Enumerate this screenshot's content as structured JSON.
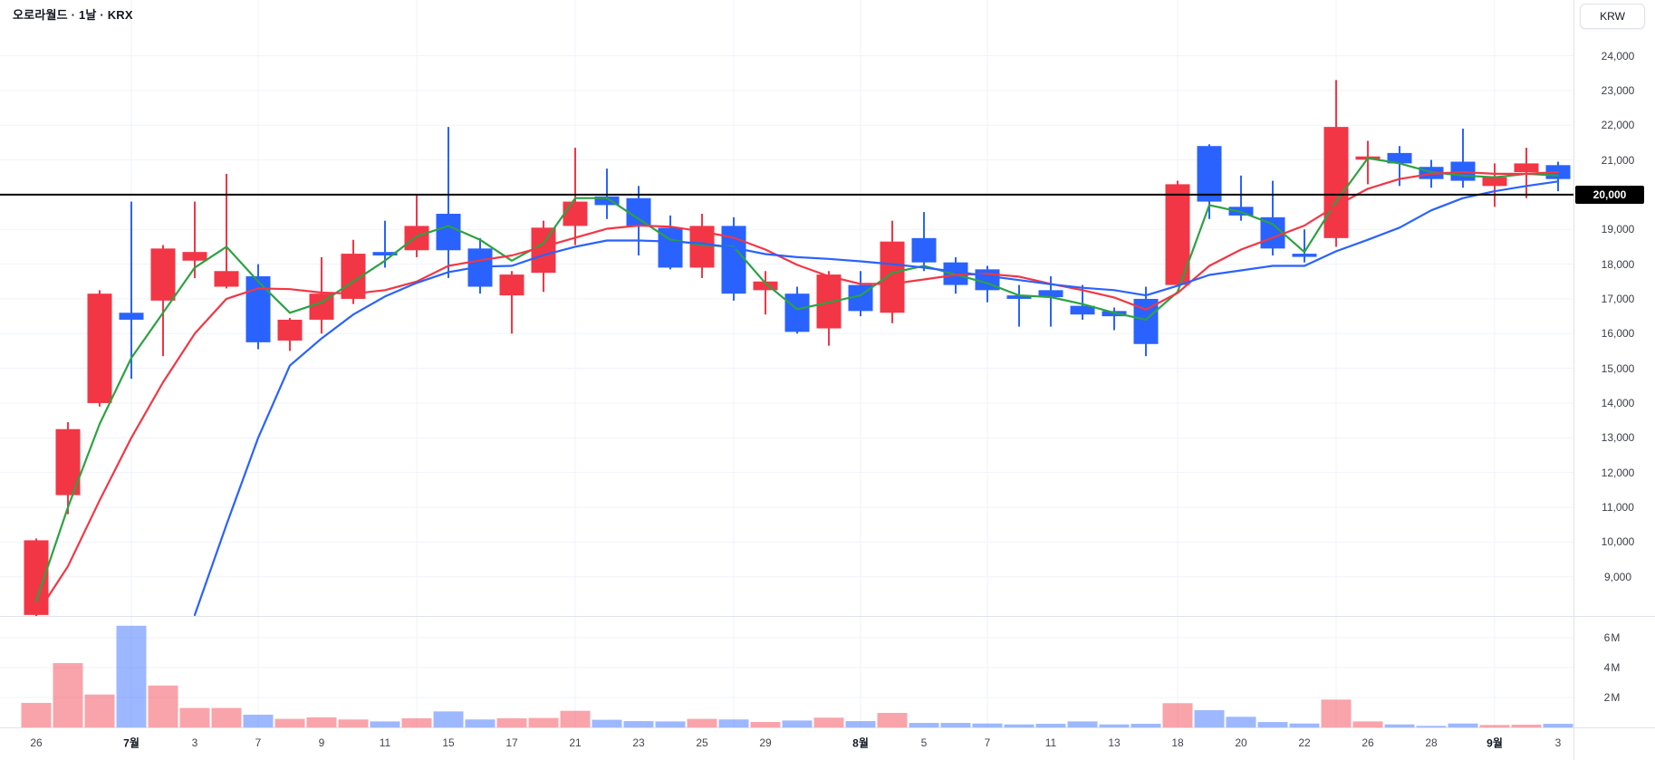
{
  "header": {
    "title": "오로라월드 · 1날 · KRX"
  },
  "price_axis": {
    "currency_button": "KRW",
    "highlight_label": {
      "text": "20,000",
      "price": 20000
    },
    "labels": [
      {
        "text": "24,000",
        "value": 24000
      },
      {
        "text": "23,000",
        "value": 23000
      },
      {
        "text": "22,000",
        "value": 22000
      },
      {
        "text": "21,000",
        "value": 21000
      },
      {
        "text": "20,000",
        "value": 20000
      },
      {
        "text": "19,000",
        "value": 19000
      },
      {
        "text": "18,000",
        "value": 18000
      },
      {
        "text": "17,000",
        "value": 17000
      },
      {
        "text": "16,000",
        "value": 16000
      },
      {
        "text": "15,000",
        "value": 15000
      },
      {
        "text": "14,000",
        "value": 14000
      },
      {
        "text": "13,000",
        "value": 13000
      },
      {
        "text": "12,000",
        "value": 12000
      },
      {
        "text": "11,000",
        "value": 11000
      },
      {
        "text": "10,000",
        "value": 10000
      },
      {
        "text": "9,000",
        "value": 9000
      }
    ]
  },
  "volume_axis": {
    "labels": [
      {
        "text": "6M",
        "value": 6
      },
      {
        "text": "4M",
        "value": 4
      },
      {
        "text": "2M",
        "value": 2
      }
    ]
  },
  "time_axis": {
    "ticks": [
      {
        "i": 0,
        "label": "26",
        "bold": false
      },
      {
        "i": 3,
        "label": "7월",
        "bold": true
      },
      {
        "i": 5,
        "label": "3",
        "bold": false
      },
      {
        "i": 7,
        "label": "7",
        "bold": false
      },
      {
        "i": 9,
        "label": "9",
        "bold": false
      },
      {
        "i": 11,
        "label": "11",
        "bold": false
      },
      {
        "i": 13,
        "label": "15",
        "bold": false
      },
      {
        "i": 15,
        "label": "17",
        "bold": false
      },
      {
        "i": 17,
        "label": "21",
        "bold": false
      },
      {
        "i": 19,
        "label": "23",
        "bold": false
      },
      {
        "i": 21,
        "label": "25",
        "bold": false
      },
      {
        "i": 23,
        "label": "29",
        "bold": false
      },
      {
        "i": 26,
        "label": "8월",
        "bold": true
      },
      {
        "i": 28,
        "label": "5",
        "bold": false
      },
      {
        "i": 30,
        "label": "7",
        "bold": false
      },
      {
        "i": 32,
        "label": "11",
        "bold": false
      },
      {
        "i": 34,
        "label": "13",
        "bold": false
      },
      {
        "i": 36,
        "label": "18",
        "bold": false
      },
      {
        "i": 38,
        "label": "20",
        "bold": false
      },
      {
        "i": 40,
        "label": "22",
        "bold": false
      },
      {
        "i": 42,
        "label": "26",
        "bold": false
      },
      {
        "i": 44,
        "label": "28",
        "bold": false
      },
      {
        "i": 46,
        "label": "9월",
        "bold": true
      },
      {
        "i": 48,
        "label": "3",
        "bold": false
      }
    ]
  },
  "chart_data": {
    "type": "candlestick+volume",
    "symbol": "오로라월드",
    "interval": "1날",
    "exchange": "KRX",
    "currency": "KRW",
    "ylim_price": [
      8100,
      25600
    ],
    "ylim_volume_m": [
      0,
      7.9
    ],
    "grid": true,
    "horizontal_line_price": 20000,
    "grid_vertical_indices": [
      3,
      7,
      12,
      17,
      22,
      26,
      30,
      36,
      41,
      46
    ],
    "candles_schema": [
      "open",
      "high",
      "low",
      "close",
      "volume_millions"
    ],
    "candles": [
      [
        7900,
        10100,
        7860,
        10050,
        1.64
      ],
      [
        11350,
        13450,
        10800,
        13250,
        4.3
      ],
      [
        14000,
        17250,
        13900,
        17150,
        2.2
      ],
      [
        16600,
        19800,
        14700,
        16400,
        6.8
      ],
      [
        16950,
        18550,
        15350,
        18450,
        2.8
      ],
      [
        18100,
        19800,
        17600,
        18350,
        1.3
      ],
      [
        17350,
        20600,
        17300,
        17800,
        1.3
      ],
      [
        17650,
        18000,
        15550,
        15750,
        0.85
      ],
      [
        15800,
        16450,
        15500,
        16400,
        0.57
      ],
      [
        16400,
        18200,
        16000,
        17150,
        0.67
      ],
      [
        17000,
        18700,
        16850,
        18300,
        0.53
      ],
      [
        18350,
        19250,
        17900,
        18250,
        0.4
      ],
      [
        18400,
        20000,
        18200,
        19100,
        0.61
      ],
      [
        19450,
        21950,
        17600,
        18400,
        1.07
      ],
      [
        18450,
        18750,
        17150,
        17350,
        0.53
      ],
      [
        17100,
        17800,
        16000,
        17700,
        0.61
      ],
      [
        17750,
        19250,
        17200,
        19050,
        0.63
      ],
      [
        19100,
        21350,
        18550,
        19800,
        1.11
      ],
      [
        19950,
        20750,
        19300,
        19700,
        0.51
      ],
      [
        19900,
        20250,
        18250,
        19100,
        0.42
      ],
      [
        19050,
        19400,
        17850,
        17900,
        0.4
      ],
      [
        17900,
        19450,
        17600,
        19100,
        0.57
      ],
      [
        19100,
        19350,
        16950,
        17150,
        0.53
      ],
      [
        17250,
        17800,
        16550,
        17500,
        0.36
      ],
      [
        17150,
        17350,
        16000,
        16050,
        0.46
      ],
      [
        16150,
        17800,
        15650,
        17700,
        0.65
      ],
      [
        17400,
        17800,
        16500,
        16650,
        0.42
      ],
      [
        16600,
        19250,
        16300,
        18650,
        0.97
      ],
      [
        18750,
        19500,
        17800,
        18050,
        0.3
      ],
      [
        18050,
        18200,
        17150,
        17400,
        0.3
      ],
      [
        17850,
        17950,
        16900,
        17250,
        0.26
      ],
      [
        17100,
        17400,
        16200,
        17000,
        0.2
      ],
      [
        17250,
        17650,
        16200,
        17050,
        0.24
      ],
      [
        16800,
        17400,
        16400,
        16550,
        0.4
      ],
      [
        16650,
        16750,
        16100,
        16500,
        0.2
      ],
      [
        17000,
        17350,
        15350,
        15700,
        0.24
      ],
      [
        17400,
        20400,
        17350,
        20300,
        1.62
      ],
      [
        21400,
        21450,
        19300,
        19800,
        1.15
      ],
      [
        19650,
        20550,
        19250,
        19400,
        0.71
      ],
      [
        19350,
        20400,
        18250,
        18450,
        0.36
      ],
      [
        18300,
        19000,
        18050,
        18250,
        0.26
      ],
      [
        18750,
        23300,
        18500,
        21950,
        1.86
      ],
      [
        21050,
        21550,
        20300,
        21100,
        0.4
      ],
      [
        21200,
        21400,
        20250,
        20900,
        0.2
      ],
      [
        20800,
        21000,
        20200,
        20450,
        0.1
      ],
      [
        20950,
        21900,
        20200,
        20400,
        0.26
      ],
      [
        20250,
        20900,
        19650,
        20500,
        0.16
      ],
      [
        20650,
        21350,
        19900,
        20900,
        0.18
      ],
      [
        20850,
        20950,
        20100,
        20450,
        0.24
      ]
    ],
    "ma_lines": [
      {
        "name": "ma-fast",
        "color": "#2ca242",
        "values": [
          8300,
          11000,
          13400,
          15300,
          16600,
          17900,
          18500,
          17500,
          16600,
          16900,
          17500,
          18100,
          18800,
          19100,
          18700,
          18100,
          18600,
          19900,
          19900,
          19300,
          18700,
          18550,
          18500,
          17450,
          16700,
          16900,
          17100,
          17750,
          17950,
          17700,
          17450,
          17100,
          17050,
          16850,
          16600,
          16400,
          17200,
          19700,
          19500,
          19150,
          18350,
          19800,
          21050,
          20900,
          20650,
          20550,
          20500,
          20600,
          20550
        ]
      },
      {
        "name": "ma-mid",
        "color": "#f23645",
        "values": [
          7900,
          9300,
          11200,
          13000,
          14600,
          16000,
          17000,
          17300,
          17280,
          17180,
          17150,
          17250,
          17500,
          17950,
          18110,
          18250,
          18500,
          18760,
          19020,
          19110,
          19080,
          18940,
          18760,
          18420,
          17980,
          17650,
          17430,
          17430,
          17560,
          17690,
          17720,
          17640,
          17430,
          17250,
          17040,
          16690,
          17170,
          17950,
          18420,
          18760,
          19110,
          19680,
          20170,
          20450,
          20600,
          20650,
          20600,
          20600,
          20650
        ]
      },
      {
        "name": "ma-slow",
        "color": "#2962ff",
        "values": [
          null,
          null,
          null,
          null,
          null,
          7900,
          10500,
          13000,
          15080,
          15860,
          16550,
          17070,
          17460,
          17770,
          17930,
          17950,
          18260,
          18500,
          18680,
          18680,
          18650,
          18600,
          18470,
          18290,
          18200,
          18150,
          18080,
          18000,
          17900,
          17780,
          17660,
          17540,
          17420,
          17320,
          17250,
          17100,
          17380,
          17690,
          17820,
          17950,
          17950,
          18370,
          18700,
          19050,
          19550,
          19900,
          20100,
          20250,
          20380
        ]
      }
    ]
  },
  "colors": {
    "up": "#f23645",
    "down": "#2962ff",
    "volume_up": "rgba(242,54,69,0.45)",
    "volume_down": "rgba(41,98,255,0.45)",
    "grid": "#f0f3fa",
    "separator": "#e0e3eb",
    "horizontal_line": "#000000",
    "background": "#ffffff"
  }
}
